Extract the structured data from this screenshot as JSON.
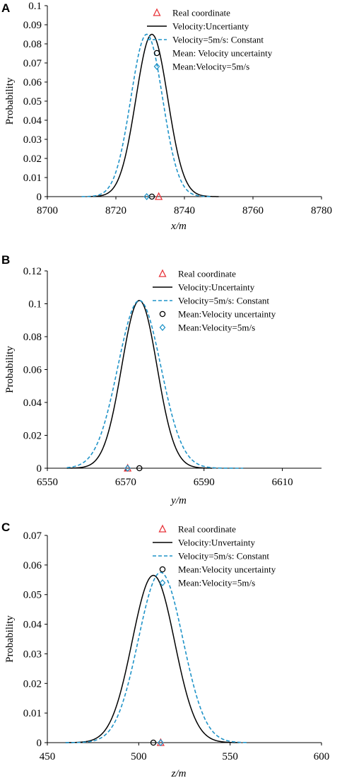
{
  "chart_data": [
    {
      "panel": "A",
      "type": "line",
      "xlabel": "x/m",
      "ylabel": "Probability",
      "xlim": [
        8700,
        8780
      ],
      "ylim": [
        0,
        0.1
      ],
      "xticks": [
        8700,
        8720,
        8740,
        8760,
        8780
      ],
      "yticks": [
        0,
        0.01,
        0.02,
        0.03,
        0.04,
        0.05,
        0.06,
        0.07,
        0.08,
        0.09,
        0.1
      ],
      "ytick_labels": [
        "0",
        "0.01",
        "0.02",
        "0.03",
        "0.04",
        "0.05",
        "0.06",
        "0.07",
        "0.08",
        "0.09",
        "0.1"
      ],
      "legend_position": "top-right",
      "series": [
        {
          "name": "Velocity:Uncertianty",
          "style": "solid",
          "color": "#000000",
          "peak_x": 8730.5,
          "peak_y": 0.085,
          "x_range": [
            8712,
            8750
          ]
        },
        {
          "name": "Velocity=5m/s: Constant",
          "style": "dashed",
          "color": "#1f93c8",
          "peak_x": 8729,
          "peak_y": 0.085,
          "x_range": [
            8710,
            8748
          ]
        }
      ],
      "markers": [
        {
          "name": "Real coordinate",
          "shape": "triangle",
          "color": "#e8343a",
          "x": 8732.5,
          "y": 0
        },
        {
          "name": "Mean: Velocity uncertainty",
          "shape": "circle",
          "color": "#000000",
          "x": 8730.5,
          "y": 0
        },
        {
          "name": "Mean:Velocity=5m/s",
          "shape": "diamond",
          "color": "#1f93c8",
          "x": 8729,
          "y": 0
        }
      ]
    },
    {
      "panel": "B",
      "type": "line",
      "xlabel": "y/m",
      "ylabel": "Probability",
      "xlim": [
        6550,
        6620
      ],
      "ylim": [
        0,
        0.12
      ],
      "xticks": [
        6550,
        6570,
        6590,
        6610
      ],
      "yticks": [
        0,
        0.02,
        0.04,
        0.06,
        0.08,
        0.1,
        0.12
      ],
      "ytick_labels": [
        "0",
        "0.02",
        "0.04",
        "0.06",
        "0.08",
        "0.1",
        "0.12"
      ],
      "legend_position": "top-right",
      "series": [
        {
          "name": "Velocity:Uncertainty",
          "style": "solid",
          "color": "#000000",
          "peak_x": 6573.5,
          "peak_y": 0.102,
          "x_range": [
            6555,
            6592
          ]
        },
        {
          "name": "Velocity=5m/s: Constant",
          "style": "dashed",
          "color": "#1f93c8",
          "peak_x": 6573.5,
          "peak_y": 0.102,
          "x_range": [
            6555,
            6600
          ]
        }
      ],
      "markers": [
        {
          "name": "Real coordinate",
          "shape": "triangle",
          "color": "#e8343a",
          "x": 6570.5,
          "y": 0
        },
        {
          "name": "Mean:Velocity uncertainty",
          "shape": "circle",
          "color": "#000000",
          "x": 6573.5,
          "y": 0
        },
        {
          "name": "Mean:Velocity=5m/s",
          "shape": "diamond",
          "color": "#1f93c8",
          "x": 6570.5,
          "y": 0
        }
      ]
    },
    {
      "panel": "C",
      "type": "line",
      "xlabel": "z/m",
      "ylabel": "Probability",
      "xlim": [
        450,
        600
      ],
      "ylim": [
        0,
        0.07
      ],
      "xticks": [
        450,
        500,
        550,
        600
      ],
      "yticks": [
        0,
        0.01,
        0.02,
        0.03,
        0.04,
        0.05,
        0.06,
        0.07
      ],
      "ytick_labels": [
        "0",
        "0.01",
        "0.02",
        "0.03",
        "0.04",
        "0.05",
        "0.06",
        "0.07"
      ],
      "legend_position": "top-right",
      "series": [
        {
          "name": "Velocity:Unvertainty",
          "style": "solid",
          "color": "#000000",
          "peak_x": 508,
          "peak_y": 0.0565,
          "x_range": [
            460,
            555
          ]
        },
        {
          "name": "Velocity=5m/s: Constant",
          "style": "dashed",
          "color": "#1f93c8",
          "peak_x": 512,
          "peak_y": 0.0575,
          "x_range": [
            460,
            560
          ]
        }
      ],
      "markers": [
        {
          "name": "Real coordinate",
          "shape": "triangle",
          "color": "#e8343a",
          "x": 512,
          "y": 0
        },
        {
          "name": "Mean:Velocity uncertainty",
          "shape": "circle",
          "color": "#000000",
          "x": 508,
          "y": 0
        },
        {
          "name": "Mean:Velocity=5m/s",
          "shape": "diamond",
          "color": "#1f93c8",
          "x": 512,
          "y": 0
        }
      ]
    }
  ]
}
